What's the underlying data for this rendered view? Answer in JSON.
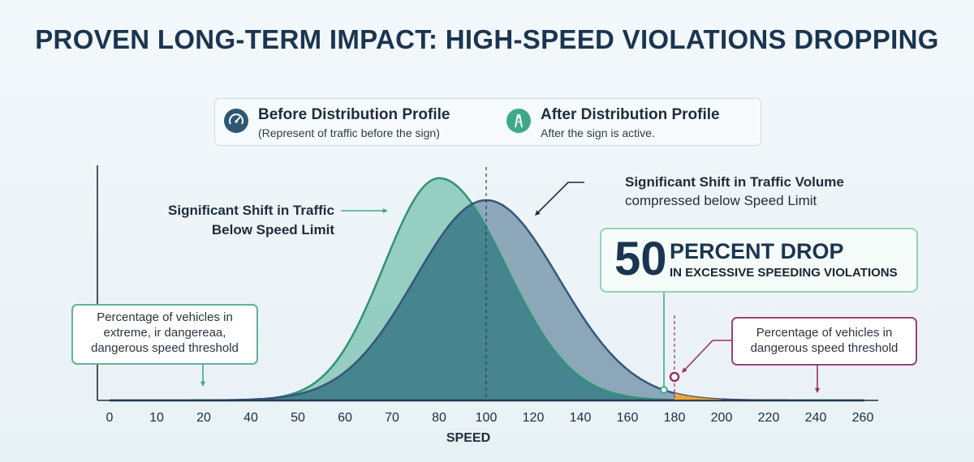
{
  "title": "PROVEN LONG-TERM IMPACT: HIGH-SPEED VIOLATIONS DROPPING",
  "legend": [
    {
      "name": "Before Distribution Profile",
      "desc": "(Represent of traffic before the sign)",
      "icon": "speedometer-icon",
      "color": "#2e5675"
    },
    {
      "name": "After Distribution Profile",
      "desc": "After the sign is active.",
      "icon": "road-icon",
      "color": "#3fa88b"
    }
  ],
  "annotations": {
    "left_shift_line1": "Significant Shift in Traffic",
    "left_shift_line2": "Below Speed Limit",
    "right_shift_line1": "Significant Shift in Traffic Volume",
    "right_shift_line2": "compressed below Speed Limit",
    "stat_number": "50",
    "stat_line1": "PERCENT DROP",
    "stat_line2": "IN EXCESSIVE SPEEDING VIOLATIONS",
    "left_box_lines": [
      "Percentage of vehicles in",
      "extreme, ir dangereaa,",
      "dangerous speed threshold"
    ],
    "right_box_lines": [
      "Percentage of vehicles in",
      "dangerous speed threshold"
    ]
  },
  "colors": {
    "before_fill": "#4d7590",
    "after_fill": "#3fa88b",
    "overlap_fill": "#3d7f8a",
    "orange": "#f0a338",
    "magenta": "#9a3069",
    "axis": "#1e2d3d"
  },
  "chart_data": {
    "type": "area",
    "xlabel": "SPEED",
    "ylabel": "",
    "x_ticks": [
      "0",
      "10",
      "20",
      "40",
      "50",
      "60",
      "70",
      "80",
      "100",
      "120",
      "140",
      "160",
      "180",
      "200",
      "220",
      "240",
      "260"
    ],
    "speed_limit": "100",
    "threshold": "180",
    "grid": false,
    "series": [
      {
        "name": "Before Distribution Profile",
        "peak_at": "100",
        "peak_relative": 1.0
      },
      {
        "name": "After Distribution Profile",
        "peak_at": "80",
        "peak_relative": 1.11
      }
    ]
  }
}
